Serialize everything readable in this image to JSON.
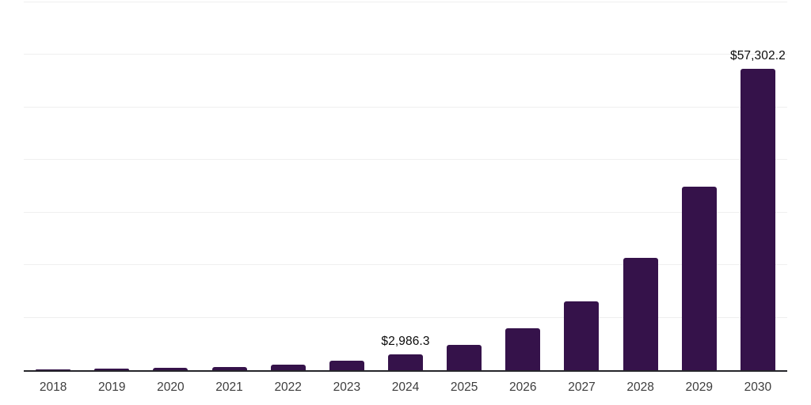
{
  "chart": {
    "bar_color": "#35124a",
    "axis_color": "#26262b",
    "gridline_color": "#efefef",
    "value_label_color": "#0b0b0b",
    "tick_label_color": "#3d3d3d",
    "background_color": "#ffffff"
  },
  "chart_data": {
    "type": "bar",
    "title": "",
    "xlabel": "",
    "ylabel": "",
    "categories": [
      "2018",
      "2019",
      "2020",
      "2021",
      "2022",
      "2023",
      "2024",
      "2025",
      "2026",
      "2027",
      "2028",
      "2029",
      "2030"
    ],
    "values": [
      150,
      250,
      410,
      670,
      1100,
      1800,
      2986.3,
      4890,
      7990,
      13080,
      21400,
      35000,
      57302.2
    ],
    "bar_labels": [
      "",
      "",
      "",
      "",
      "",
      "",
      "$2,986.3",
      "",
      "",
      "",
      "",
      "",
      "$57,302.2"
    ],
    "ylim": [
      0,
      70000
    ],
    "grid_step": 10000,
    "grid": true,
    "legend_position": "none",
    "y_axis_tick_labels_visible": false,
    "notes": "Only 2024 and 2030 bars carry visible data labels; other values estimated from gridlines (10,000 per division)."
  }
}
